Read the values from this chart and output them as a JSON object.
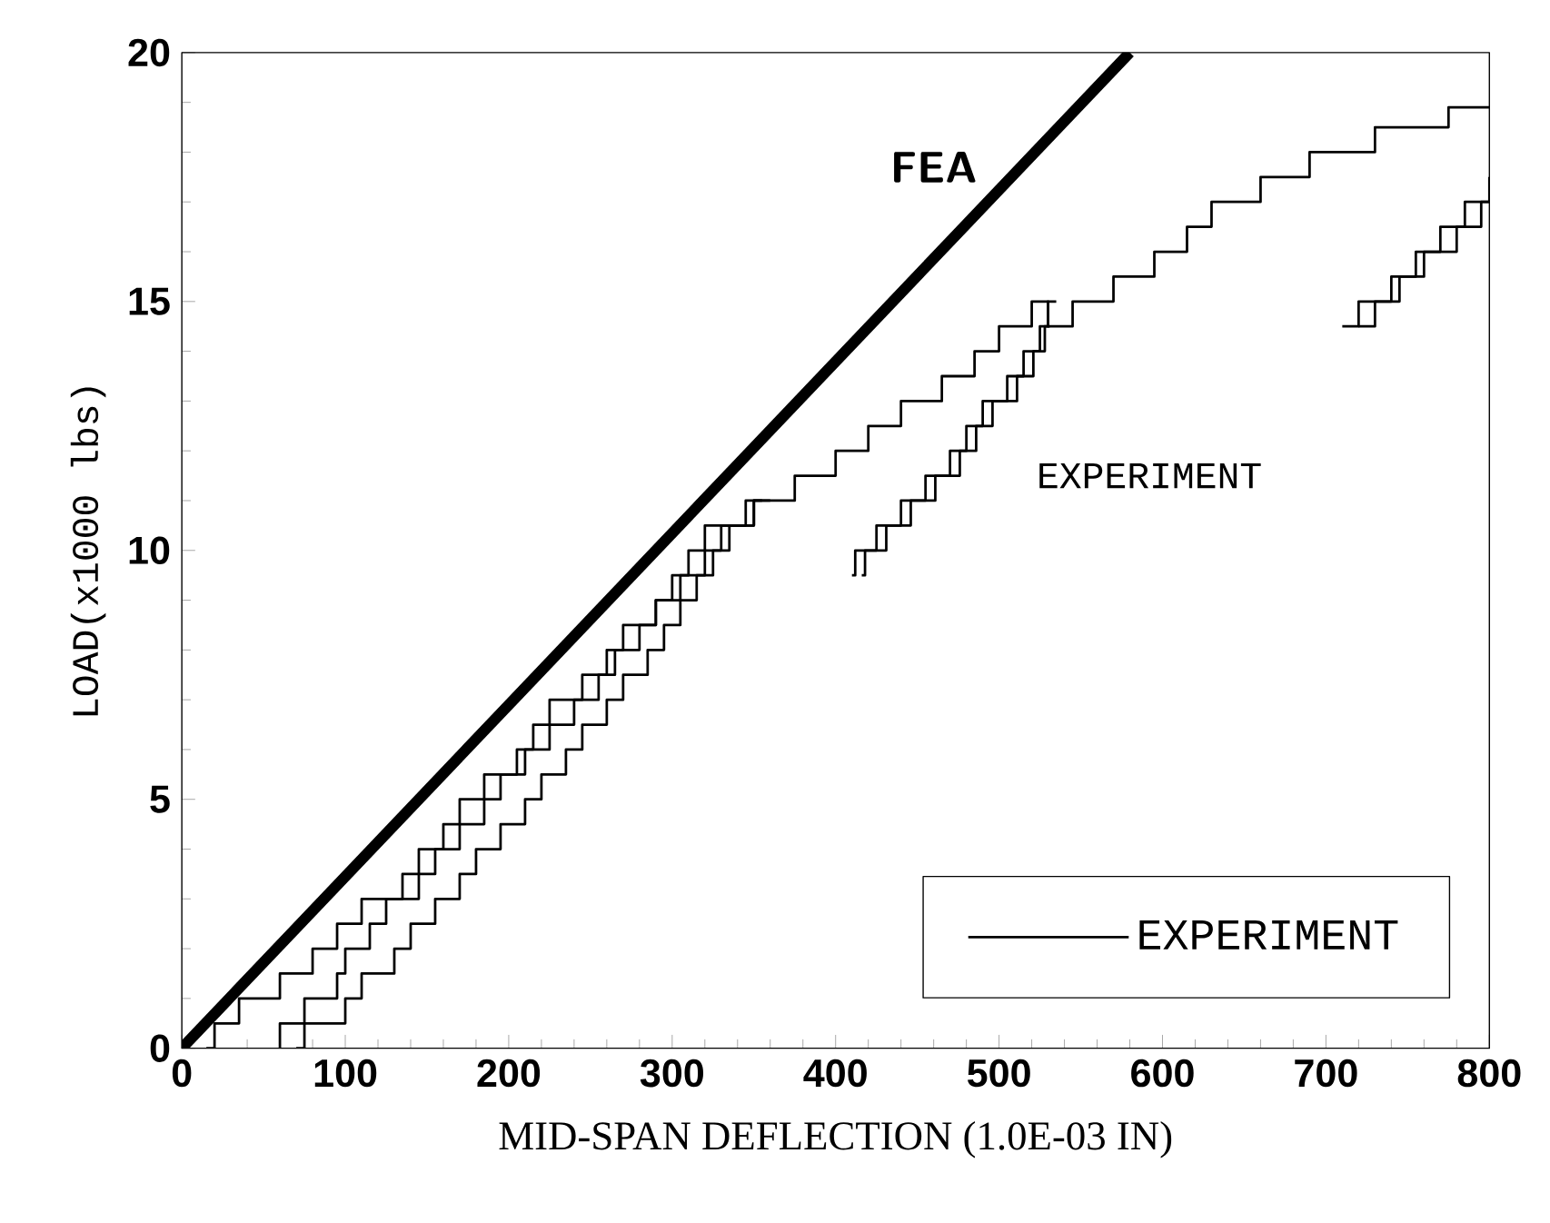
{
  "chart_data": {
    "type": "line",
    "xlabel": "MID-SPAN DEFLECTION (1.0E-03 IN)",
    "ylabel": "LOAD(x1000 lbs)",
    "xlim": [
      0,
      800
    ],
    "ylim": [
      0,
      20
    ],
    "xticks": [
      0,
      100,
      200,
      300,
      400,
      500,
      600,
      700,
      800
    ],
    "yticks": [
      0,
      5,
      10,
      15,
      20
    ],
    "legend": "bottom right",
    "grid": false,
    "marker": "none",
    "line_style": "solid",
    "annotations": [
      "FEA",
      "EXPERIMENT"
    ],
    "series": [
      {
        "color": "#000000",
        "x": [
          0,
          580
        ],
        "values": [
          0,
          20
        ]
      },
      {
        "type": "step",
        "name": "EXPERIMENT",
        "color": "#000000",
        "x": [
          15,
          20,
          35,
          60,
          80,
          95,
          110,
          135,
          145,
          160,
          170,
          185,
          205,
          215,
          225,
          245,
          260,
          270,
          290,
          300,
          310,
          320,
          350,
          375,
          400,
          420,
          440,
          465,
          485,
          500,
          520,
          530,
          545,
          570,
          595,
          615,
          630,
          660,
          690,
          730,
          775,
          800
        ],
        "values": [
          0,
          0.5,
          1,
          1.5,
          2,
          2.5,
          3,
          3.5,
          4,
          4.5,
          5,
          5.5,
          6,
          6.5,
          7,
          7.5,
          8,
          8.5,
          9,
          9.5,
          10,
          10.5,
          11,
          11.5,
          12,
          12.5,
          13,
          13.5,
          14,
          14.5,
          15,
          14.5,
          15,
          15.5,
          16,
          16.5,
          17,
          17.5,
          18,
          18.5,
          18.9,
          18.9
        ]
      },
      {
        "type": "step",
        "color": "#000000",
        "x": [
          60,
          60,
          75,
          95,
          100,
          115,
          125,
          145,
          155,
          170,
          185,
          195,
          210,
          225,
          240,
          255,
          265,
          280,
          290,
          305,
          320,
          330,
          345,
          355,
          380,
          410,
          412,
          425,
          440,
          455,
          470,
          480,
          490,
          505,
          515,
          525,
          530,
          535,
          600,
          710,
          720,
          740,
          755,
          770,
          785,
          800
        ],
        "values": [
          0,
          0.5,
          1,
          1.5,
          2,
          2.5,
          3,
          3.5,
          4,
          4.5,
          5,
          5.5,
          6,
          6.5,
          7,
          7.5,
          8,
          8.5,
          9,
          9.5,
          10,
          10.5,
          11,
          11,
          null,
          9.5,
          10,
          10.5,
          11,
          11.5,
          12,
          12.5,
          13,
          13.5,
          14,
          14.5,
          15,
          15,
          null,
          14.5,
          15,
          15.5,
          16,
          16.5,
          17,
          17.5
        ]
      },
      {
        "type": "step",
        "color": "#000000",
        "x": [
          70,
          75,
          100,
          110,
          130,
          140,
          155,
          170,
          180,
          195,
          210,
          220,
          235,
          245,
          260,
          270,
          285,
          295,
          305,
          315,
          325,
          335,
          350,
          360,
          390,
          416,
          418,
          431,
          446,
          461,
          476,
          486,
          496,
          511,
          521,
          528,
          531,
          600,
          720,
          730,
          745,
          760,
          780,
          795,
          800
        ],
        "values": [
          0,
          0.5,
          1,
          1.5,
          2,
          2.5,
          3,
          3.5,
          4,
          4.5,
          5,
          5.5,
          6,
          6.5,
          7,
          7.5,
          8,
          8.5,
          9,
          9.5,
          10,
          10.5,
          11,
          11,
          null,
          9.5,
          10,
          10.5,
          11,
          11.5,
          12,
          12.5,
          13,
          13.5,
          14,
          14.5,
          14.5,
          null,
          14.5,
          15,
          15.5,
          16,
          16.5,
          17,
          17
        ]
      }
    ]
  }
}
